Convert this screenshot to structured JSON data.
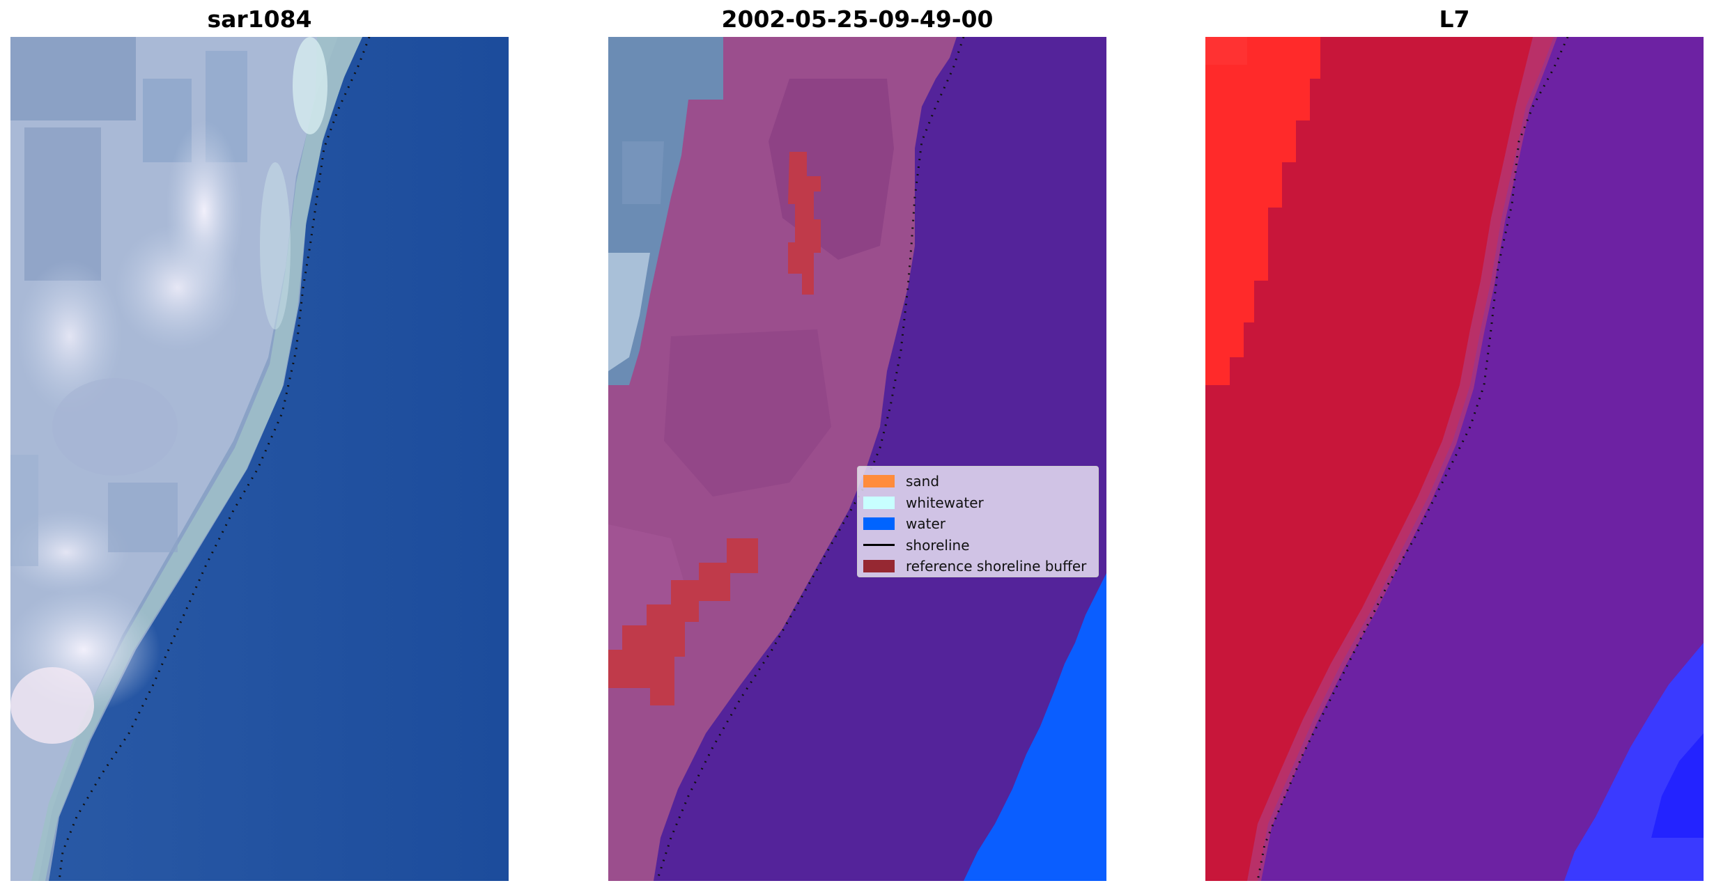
{
  "panels": [
    {
      "title": "sar1084"
    },
    {
      "title": "2002-05-25-09-49-00"
    },
    {
      "title": "L7"
    }
  ],
  "legend": {
    "entries": [
      {
        "label": "sand",
        "color": "#ff8c3c",
        "kind": "patch"
      },
      {
        "label": "whitewater",
        "color": "#c8ffff",
        "kind": "patch"
      },
      {
        "label": "water",
        "color": "#0064ff",
        "kind": "patch"
      },
      {
        "label": "shoreline",
        "color": "#000000",
        "kind": "line"
      },
      {
        "label": "reference shoreline buffer",
        "color": "#962832",
        "kind": "patch"
      }
    ]
  },
  "colors": {
    "rgb_land": "#c4d2e8",
    "rgb_ocean": "#1f4f9e",
    "class_land": "#9a4e8c",
    "class_water": "#54239a",
    "class_water_bright": "#0a5eff",
    "buffer_overlay": "#c03a4a",
    "index_land": "#c8163a",
    "index_land_bright": "#ff2a2a",
    "index_water": "#6d22a3",
    "index_water_bright": "#3a3aff"
  }
}
